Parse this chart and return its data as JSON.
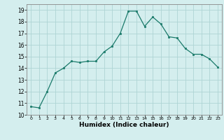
{
  "x": [
    0,
    1,
    2,
    3,
    4,
    5,
    6,
    7,
    8,
    9,
    10,
    11,
    12,
    13,
    14,
    15,
    16,
    17,
    18,
    19,
    20,
    21,
    22,
    23
  ],
  "y": [
    10.7,
    10.6,
    12.0,
    13.6,
    14.0,
    14.6,
    14.5,
    14.6,
    14.6,
    15.4,
    15.9,
    17.0,
    18.9,
    18.9,
    17.6,
    18.4,
    17.8,
    16.7,
    16.6,
    15.7,
    15.2,
    15.2,
    14.8,
    14.1
  ],
  "xlabel": "Humidex (Indice chaleur)",
  "line_color": "#1a7a6a",
  "marker_color": "#1a7a6a",
  "bg_color": "#d4eeee",
  "grid_color": "#aed4d4",
  "ylim_min": 10,
  "ylim_max": 19.5,
  "xlim_min": -0.5,
  "xlim_max": 23.5,
  "yticks": [
    10,
    11,
    12,
    13,
    14,
    15,
    16,
    17,
    18,
    19
  ],
  "xticks": [
    0,
    1,
    2,
    3,
    4,
    5,
    6,
    7,
    8,
    9,
    10,
    11,
    12,
    13,
    14,
    15,
    16,
    17,
    18,
    19,
    20,
    21,
    22,
    23
  ]
}
